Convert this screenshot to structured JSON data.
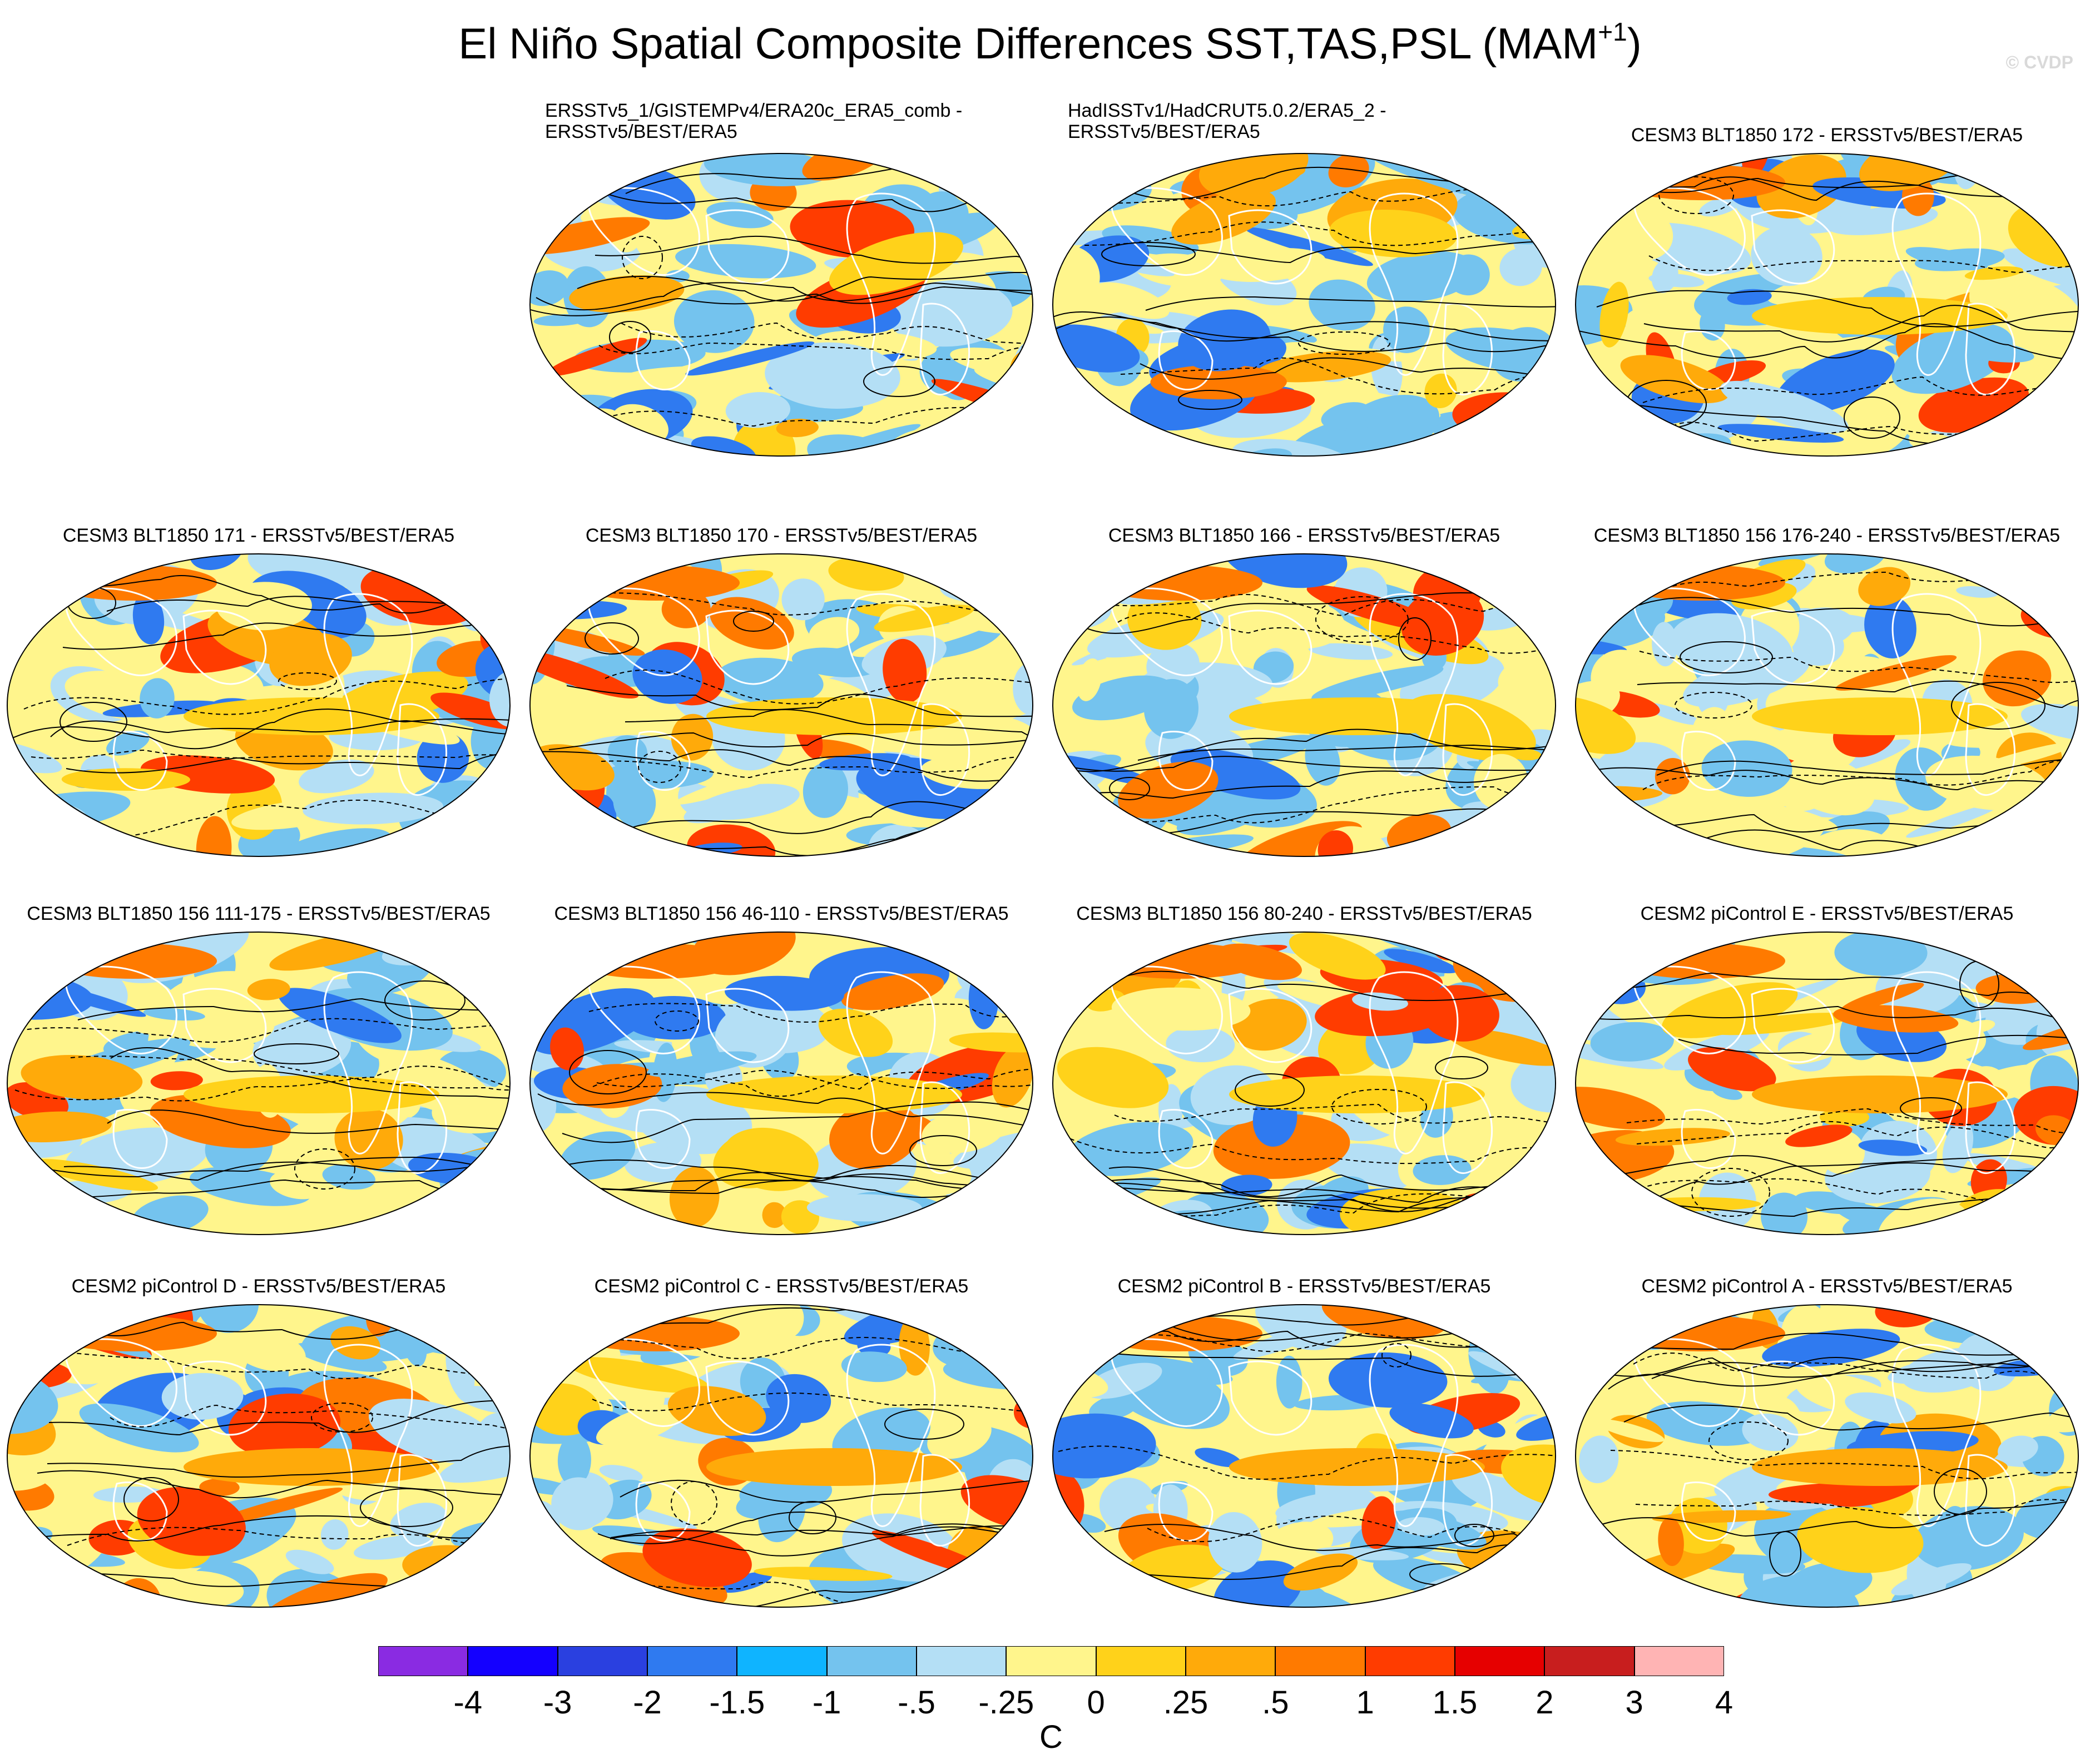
{
  "title": {
    "main": "El Niño Spatial Composite Differences SST,TAS,PSL (MAM",
    "superscript": "+1",
    "close": ")"
  },
  "watermark": "© CVDP",
  "panels": [
    {
      "title_line1": "ERSSTv5_1/GISTEMPv4/ERA20c_ERA5_comb -",
      "title_line2": "ERSSTv5/BEST/ERA5",
      "pattern": 1
    },
    {
      "title_line1": "HadISSTv1/HadCRUT5.0.2/ERA5_2 -",
      "title_line2": "ERSSTv5/BEST/ERA5",
      "pattern": 2
    },
    {
      "title_line1": "CESM3 BLT1850 172 - ERSSTv5/BEST/ERA5",
      "title_line2": "",
      "pattern": 3
    },
    {
      "title_line1": "CESM3 BLT1850 171 - ERSSTv5/BEST/ERA5",
      "title_line2": "",
      "pattern": 4
    },
    {
      "title_line1": "CESM3 BLT1850 170 - ERSSTv5/BEST/ERA5",
      "title_line2": "",
      "pattern": 5
    },
    {
      "title_line1": "CESM3 BLT1850 166 - ERSSTv5/BEST/ERA5",
      "title_line2": "",
      "pattern": 6
    },
    {
      "title_line1": "CESM3 BLT1850 156 176-240 - ERSSTv5/BEST/ERA5",
      "title_line2": "",
      "pattern": 7
    },
    {
      "title_line1": "CESM3 BLT1850 156 111-175 - ERSSTv5/BEST/ERA5",
      "title_line2": "",
      "pattern": 8
    },
    {
      "title_line1": "CESM3 BLT1850 156 46-110 - ERSSTv5/BEST/ERA5",
      "title_line2": "",
      "pattern": 9
    },
    {
      "title_line1": "CESM3 BLT1850 156 80-240 - ERSSTv5/BEST/ERA5",
      "title_line2": "",
      "pattern": 10
    },
    {
      "title_line1": "CESM2 piControl E - ERSSTv5/BEST/ERA5",
      "title_line2": "",
      "pattern": 11
    },
    {
      "title_line1": "CESM2 piControl D - ERSSTv5/BEST/ERA5",
      "title_line2": "",
      "pattern": 12
    },
    {
      "title_line1": "CESM2 piControl C - ERSSTv5/BEST/ERA5",
      "title_line2": "",
      "pattern": 13
    },
    {
      "title_line1": "CESM2 piControl B - ERSSTv5/BEST/ERA5",
      "title_line2": "",
      "pattern": 14
    },
    {
      "title_line1": "CESM2 piControl A - ERSSTv5/BEST/ERA5",
      "title_line2": "",
      "pattern": 15
    }
  ],
  "colorbar": {
    "colors": [
      "#8a2be2",
      "#1400ff",
      "#2a40e0",
      "#2f7af0",
      "#0fb4ff",
      "#74c3ee",
      "#b4dff5",
      "#fff58c",
      "#ffd21a",
      "#ffaa0a",
      "#ff7a00",
      "#ff3c00",
      "#e60000",
      "#c81e1e",
      "#ffb4b4"
    ],
    "labels": [
      "-4",
      "-3",
      "-2",
      "-1.5",
      "-1",
      "-.5",
      "-.25",
      "0",
      ".25",
      ".5",
      "1",
      "1.5",
      "2",
      "3",
      "4"
    ],
    "unit": "C"
  }
}
